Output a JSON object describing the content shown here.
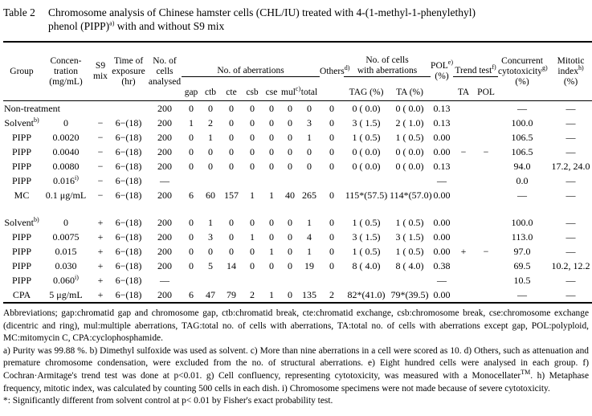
{
  "title": {
    "label": "Table 2",
    "text": "Chromosome analysis of Chinese hamster cells (CHL/IU) treated with 4-(1-methyl-1-phenylethyl)\nphenol (PIPP)^{a)} with and without S9 mix"
  },
  "table": {
    "headers": {
      "group": "Group",
      "concentration": "Concen-\ntration\n(mg/mL)",
      "s9": "S9\nmix",
      "time": "Time of\nexposure\n(hr)",
      "cells": "No. of\ncells\nanalysed",
      "aberrations": "No. of aberrations",
      "aberration_cols": [
        "gap",
        "ctb",
        "cte",
        "csb",
        "cse",
        "mul^{c)}",
        "total"
      ],
      "others": "Others^{d)}",
      "cells_with_aberrations": "No. of cells\nwith aberrations",
      "tag": "TAG (%)",
      "ta": "TA (%)",
      "pol": "POL^{e)}\n(%)",
      "trend": "Trend test^{f)}",
      "trend_ta": "TA",
      "trend_pol": "POL",
      "cytotoxicity": "Concurrent\ncytotoxicity^{g)}\n(%)",
      "mitotic": "Mitotic\nindex^{h)}\n(%)"
    },
    "rows": [
      {
        "cells": [
          "Non-treatment",
          "",
          "",
          "",
          "200",
          "0",
          "0",
          "0",
          "0",
          "0",
          "0",
          "0",
          "0",
          "0 ( 0.0)",
          "0 ( 0.0)",
          "0.13",
          "",
          "",
          "—",
          "—"
        ]
      },
      {
        "cells": [
          "Solvent^{b)}",
          "0",
          "−",
          "6−(18)",
          "200",
          "1",
          "2",
          "0",
          "0",
          "0",
          "0",
          "3",
          "0",
          "3 ( 1.5)",
          "2 ( 1.0)",
          "0.13",
          "",
          "",
          "100.0",
          "—"
        ]
      },
      {
        "cells": [
          "PIPP",
          "0.0020",
          "−",
          "6−(18)",
          "200",
          "0",
          "1",
          "0",
          "0",
          "0",
          "0",
          "1",
          "0",
          "1 ( 0.5)",
          "1 ( 0.5)",
          "0.00",
          "",
          "",
          "106.5",
          "—"
        ]
      },
      {
        "cells": [
          "PIPP",
          "0.0040",
          "−",
          "6−(18)",
          "200",
          "0",
          "0",
          "0",
          "0",
          "0",
          "0",
          "0",
          "0",
          "0 ( 0.0)",
          "0 ( 0.0)",
          "0.00",
          "−",
          "−",
          "106.5",
          "—"
        ]
      },
      {
        "cells": [
          "PIPP",
          "0.0080",
          "−",
          "6−(18)",
          "200",
          "0",
          "0",
          "0",
          "0",
          "0",
          "0",
          "0",
          "0",
          "0 ( 0.0)",
          "0 ( 0.0)",
          "0.13",
          "",
          "",
          "94.0",
          "17.2, 24.0"
        ]
      },
      {
        "cells": [
          "PIPP",
          "0.016^{i)}",
          "−",
          "6−(18)",
          "—",
          "",
          "",
          "",
          "",
          "",
          "",
          "",
          "",
          "",
          "",
          "—",
          "",
          "",
          "0.0",
          "—"
        ]
      },
      {
        "cells": [
          "MC",
          "0.1 μg/mL",
          "−",
          "6−(18)",
          "200",
          "6",
          "60",
          "157",
          "1",
          "1",
          "40",
          "265",
          "0",
          "115*(57.5)",
          "114*(57.0)",
          "0.00",
          "",
          "",
          "—",
          "—"
        ]
      },
      {
        "spacer": true
      },
      {
        "cells": [
          "Solvent^{b)}",
          "0",
          "+",
          "6−(18)",
          "200",
          "0",
          "1",
          "0",
          "0",
          "0",
          "0",
          "1",
          "0",
          "1 ( 0.5)",
          "1 ( 0.5)",
          "0.00",
          "",
          "",
          "100.0",
          "—"
        ]
      },
      {
        "cells": [
          "PIPP",
          "0.0075",
          "+",
          "6−(18)",
          "200",
          "0",
          "3",
          "0",
          "1",
          "0",
          "0",
          "4",
          "0",
          "3 ( 1.5)",
          "3 ( 1.5)",
          "0.00",
          "",
          "",
          "113.0",
          "—"
        ]
      },
      {
        "cells": [
          "PIPP",
          "0.015",
          "+",
          "6−(18)",
          "200",
          "0",
          "0",
          "0",
          "0",
          "1",
          "0",
          "1",
          "0",
          "1 ( 0.5)",
          "1 ( 0.5)",
          "0.00",
          "+",
          "−",
          "97.0",
          "—"
        ]
      },
      {
        "cells": [
          "PIPP",
          "0.030",
          "+",
          "6−(18)",
          "200",
          "0",
          "5",
          "14",
          "0",
          "0",
          "0",
          "19",
          "0",
          "8 ( 4.0)",
          "8 ( 4.0)",
          "0.38",
          "",
          "",
          "69.5",
          "10.2, 12.2"
        ]
      },
      {
        "cells": [
          "PIPP",
          "0.060^{i)}",
          "+",
          "6−(18)",
          "—",
          "",
          "",
          "",
          "",
          "",
          "",
          "",
          "",
          "",
          "",
          "—",
          "",
          "",
          "10.5",
          "—"
        ]
      },
      {
        "cells": [
          "CPA",
          "5 μg/mL",
          "+",
          "6−(18)",
          "200",
          "6",
          "47",
          "79",
          "2",
          "1",
          "0",
          "135",
          "2",
          "82*(41.0)",
          "79*(39.5)",
          "0.00",
          "",
          "",
          "—",
          "—"
        ]
      }
    ]
  },
  "footnotes": {
    "abbreviations": "Abbreviations; gap:chromatid gap and chromosome gap, ctb:chromatid break, cte:chromatid exchange, csb:chromosome break, cse:chromosome exchange (dicentric and ring), mul:multiple aberrations, TAG:total no. of cells with aberrations, TA:total no. of cells with aberrations except gap, POL:polyploid, MC:mitomycin C, CPA:cyclophosphamide.",
    "notes": "a) Purity was 99.88 %. b) Dimethyl sulfoxide was used as solvent. c) More than nine aberrations in a cell were scored as 10. d) Others, such as attenuation and premature chromosome condensation, were excluded from the no. of structural aberrations. e) Eight hundred cells were analysed in each group. f) Cochran·Armitage's trend test was done at p<0.01. g) Cell confluency, representing cytotoxicity, was measured with a Monocellater^{TM}. h) Metaphase frequency, mitotic index, was calculated by counting 500 cells in each dish. i) Chromosome specimens were not made because of severe cytotoxicity.",
    "significance": "*: Significantly different from solvent control at p< 0.01 by Fisher's exact probability test."
  }
}
